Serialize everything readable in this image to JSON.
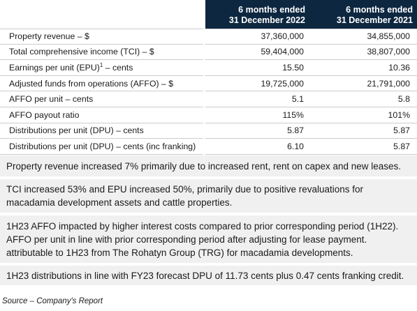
{
  "table": {
    "headers": [
      {
        "line1": "6 months ended",
        "line2": "31 December 2022"
      },
      {
        "line1": "6 months ended",
        "line2": "31 December 2021"
      }
    ],
    "rows": [
      {
        "label": "Property revenue – $",
        "v2022": "37,360,000",
        "v2021": "34,855,000"
      },
      {
        "label": "Total comprehensive income (TCI) – $",
        "v2022": "59,404,000",
        "v2021": "38,807,000"
      },
      {
        "label_pre": "Earnings per unit (EPU)",
        "label_sup": "1",
        "label_post": " – cents",
        "v2022": "15.50",
        "v2021": "10.36"
      },
      {
        "label": "Adjusted funds from operations (AFFO) – $",
        "v2022": "19,725,000",
        "v2021": "21,791,000"
      },
      {
        "label": "AFFO per unit – cents",
        "v2022": "5.1",
        "v2021": "5.8"
      },
      {
        "label": "AFFO payout ratio",
        "v2022": "115%",
        "v2021": "101%"
      },
      {
        "label": "Distributions per unit (DPU) – cents",
        "v2022": "5.87",
        "v2021": "5.87"
      },
      {
        "label": "Distributions per unit (DPU) – cents (inc franking)",
        "v2022": "6.10",
        "v2021": "5.87"
      }
    ]
  },
  "notes": [
    "Property revenue increased 7% primarily due to increased rent, rent on capex and new leases.",
    "TCI increased 53% and EPU increased 50%, primarily due to positive revaluations for macadamia development assets and cattle properties.",
    "1H23 AFFO impacted by higher interest costs compared to prior corresponding period (1H22). AFFO per unit in line with prior corresponding period after adjusting for lease payment. attributable to 1H23 from The Rohatyn Group (TRG) for macadamia developments.",
    "1H23 distributions in line with FY23 forecast DPU of 11.73 cents plus 0.47 cents franking credit."
  ],
  "source": "Source – Company's Report",
  "colors": {
    "header_bg": "#0d2740",
    "note_bg": "#f0f0f1",
    "row_border": "#c9ccd1"
  }
}
